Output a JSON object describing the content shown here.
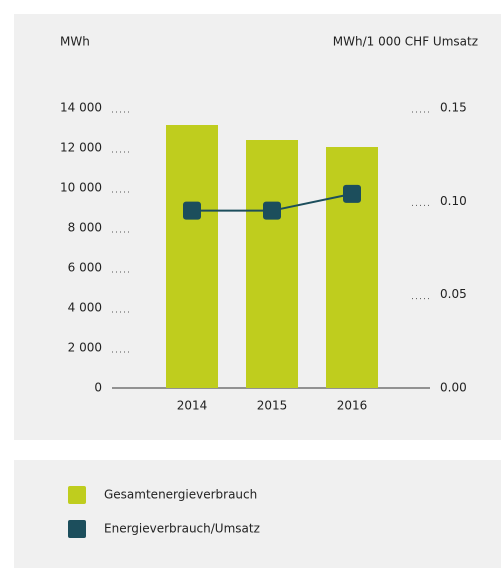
{
  "chart_data": {
    "type": "bar-line",
    "y_label": "MWh",
    "y2_label": "MWh/1 000 CHF Umsatz",
    "categories": [
      "2014",
      "2015",
      "2016"
    ],
    "series": [
      {
        "name": "Gesamtenergieverbrauch",
        "color": "#bfcd1e",
        "type": "bar",
        "values": [
          13150,
          12400,
          12050
        ]
      },
      {
        "name": "Energieverbrauch/Umsatz",
        "color": "#1c4e5c",
        "type": "line",
        "axis": "y2",
        "values": [
          0.095,
          0.095,
          0.104
        ]
      }
    ],
    "ylim": [
      0,
      14000
    ],
    "yticks": [
      0,
      {
        "value": 2000,
        "label": "2 000"
      },
      {
        "value": 4000,
        "label": "4 000"
      },
      {
        "value": 6000,
        "label": "6 000"
      },
      {
        "value": 8000,
        "label": "8 000"
      },
      {
        "value": 10000,
        "label": "10 000"
      },
      {
        "value": 12000,
        "label": "12 000"
      },
      {
        "value": 14000,
        "label": "14 000"
      }
    ],
    "y2lim": [
      0,
      0.15
    ],
    "y2ticks": [
      {
        "value": 0,
        "label": "0.00"
      },
      0.05,
      {
        "value": 0.1,
        "label": "0.10"
      },
      0.15
    ]
  }
}
